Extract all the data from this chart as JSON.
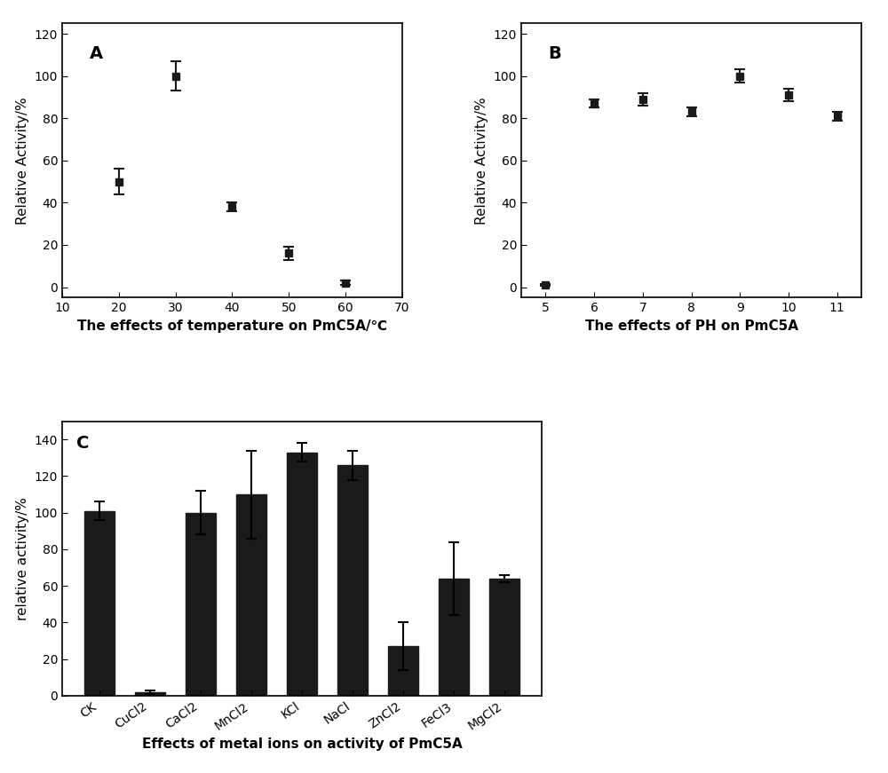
{
  "panel_A": {
    "x": [
      20,
      30,
      40,
      50,
      60
    ],
    "y": [
      50,
      100,
      38,
      16,
      2
    ],
    "yerr": [
      6,
      7,
      2,
      3,
      1
    ],
    "xlabel": "The effects of temperature on PmC5A/℃",
    "ylabel": "Relative Activity/%",
    "xlim": [
      10,
      70
    ],
    "ylim": [
      -5,
      125
    ],
    "xticks": [
      10,
      20,
      30,
      40,
      50,
      60,
      70
    ],
    "yticks": [
      0,
      20,
      40,
      60,
      80,
      100,
      120
    ],
    "label": "A"
  },
  "panel_B": {
    "x": [
      5,
      6,
      7,
      8,
      9,
      10,
      11
    ],
    "y": [
      1,
      87,
      89,
      83,
      100,
      91,
      81
    ],
    "yerr": [
      0.5,
      2,
      3,
      2,
      3,
      3,
      2
    ],
    "xlabel": "The effects of PH on PmC5A",
    "ylabel": "Relative Activity/%",
    "xlim": [
      4.5,
      11.5
    ],
    "ylim": [
      -5,
      125
    ],
    "xticks": [
      5,
      6,
      7,
      8,
      9,
      10,
      11
    ],
    "yticks": [
      0,
      20,
      40,
      60,
      80,
      100,
      120
    ],
    "label": "B"
  },
  "panel_C": {
    "categories": [
      "CK",
      "CuCl2",
      "CaCl2",
      "MnCl2",
      "KCl",
      "NaCl",
      "ZnCl2",
      "FeCl3",
      "MgCl2"
    ],
    "values": [
      101,
      2,
      100,
      110,
      133,
      126,
      27,
      64,
      64
    ],
    "yerr": [
      5,
      1,
      12,
      24,
      5,
      8,
      13,
      20,
      2
    ],
    "xlabel": "Effects of metal ions on activity of PmC5A",
    "ylabel": "relative activity/%",
    "ylim": [
      0,
      150
    ],
    "yticks": [
      0,
      20,
      40,
      60,
      80,
      100,
      120,
      140
    ],
    "label": "C"
  },
  "bar_color": "#1a1a1a",
  "line_color": "#1a1a1a",
  "marker": "s",
  "markersize": 6,
  "linewidth": 2,
  "elinewidth": 1.5,
  "capsize": 4,
  "background_color": "#f0f0f0"
}
